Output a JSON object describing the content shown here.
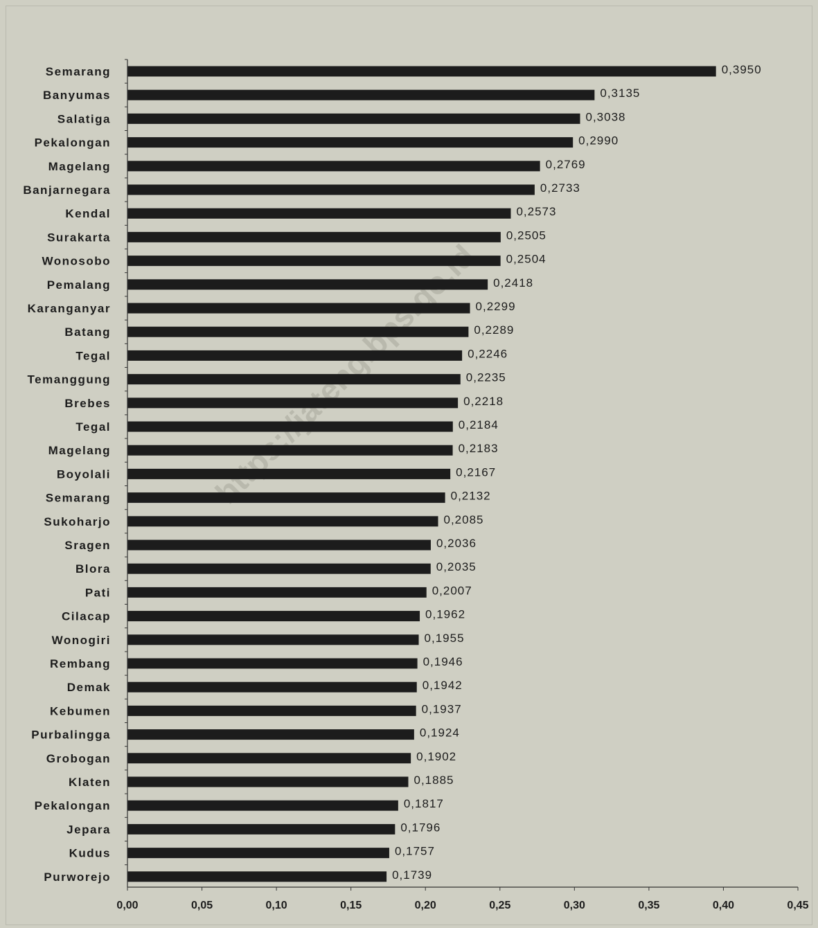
{
  "watermark": "https://jateng.bps.go.id",
  "chart_data": {
    "type": "bar",
    "orientation": "horizontal",
    "title": "",
    "xlabel": "",
    "ylabel": "",
    "xlim": [
      0,
      0.45
    ],
    "x_ticks": [
      "0,00",
      "0,05",
      "0,10",
      "0,15",
      "0,20",
      "0,25",
      "0,30",
      "0,35",
      "0,40",
      "0,45"
    ],
    "x_tick_values": [
      0,
      0.05,
      0.1,
      0.15,
      0.2,
      0.25,
      0.3,
      0.35,
      0.4,
      0.45
    ],
    "grid": false,
    "bar_color": "#1c1c1c",
    "categories": [
      "Semarang",
      "Banyumas",
      "Salatiga",
      "Pekalongan",
      "Magelang",
      "Banjarnegara",
      "Kendal",
      "Surakarta",
      "Wonosobo",
      "Pemalang",
      "Karanganyar",
      "Batang",
      "Tegal",
      "Temanggung",
      "Brebes",
      "Tegal",
      "Magelang",
      "Boyolali",
      "Semarang",
      "Sukoharjo",
      "Sragen",
      "Blora",
      "Pati",
      "Cilacap",
      "Wonogiri",
      "Rembang",
      "Demak",
      "Kebumen",
      "Purbalingga",
      "Grobogan",
      "Klaten",
      "Pekalongan",
      "Jepara",
      "Kudus",
      "Purworejo"
    ],
    "value_labels": [
      "0,3950",
      "0,3135",
      "0,3038",
      "0,2990",
      "0,2769",
      "0,2733",
      "0,2573",
      "0,2505",
      "0,2504",
      "0,2418",
      "0,2299",
      "0,2289",
      "0,2246",
      "0,2235",
      "0,2218",
      "0,2184",
      "0,2183",
      "0,2167",
      "0,2132",
      "0,2085",
      "0,2036",
      "0,2035",
      "0,2007",
      "0,1962",
      "0,1955",
      "0,1946",
      "0,1942",
      "0,1937",
      "0,1924",
      "0,1902",
      "0,1885",
      "0,1817",
      "0,1796",
      "0,1757",
      "0,1739"
    ],
    "values": [
      0.395,
      0.3135,
      0.3038,
      0.299,
      0.2769,
      0.2733,
      0.2573,
      0.2505,
      0.2504,
      0.2418,
      0.2299,
      0.2289,
      0.2246,
      0.2235,
      0.2218,
      0.2184,
      0.2183,
      0.2167,
      0.2132,
      0.2085,
      0.2036,
      0.2035,
      0.2007,
      0.1962,
      0.1955,
      0.1946,
      0.1942,
      0.1937,
      0.1924,
      0.1902,
      0.1885,
      0.1817,
      0.1796,
      0.1757,
      0.1739
    ]
  }
}
